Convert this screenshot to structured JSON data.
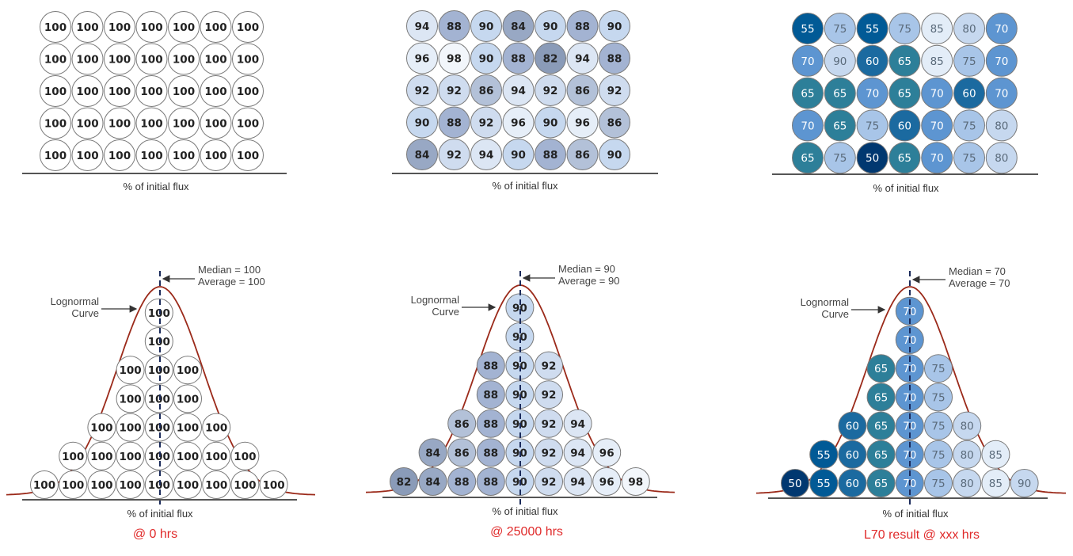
{
  "axis_label": "% of initial flux",
  "median_label_prefix": "Median = ",
  "average_label_prefix": "Average = ",
  "curve_label_line1": "Lognormal",
  "curve_label_line2": "Curve",
  "colors": {
    "100": "#ffffff",
    "98": "#f2f6fb",
    "96": "#e6eef8",
    "94": "#dce6f4",
    "92": "#cfdcef",
    "90": "#c6d8ef",
    "88": "#a3b3d2",
    "86": "#b3c1d8",
    "84": "#98a8c4",
    "82": "#8a9bb8",
    "85": "#e3edf8",
    "80": "#c6d8ef",
    "75": "#a8c5e8",
    "70": "#5d95d1",
    "65": "#2d7f99",
    "60": "#1b6aa0",
    "55": "#015a96",
    "50": "#013870",
    "curve": "#9b2a1a",
    "caption": "#e02a2a"
  },
  "panels": [
    {
      "id": "0hrs",
      "grid": [
        [
          100,
          100,
          100,
          100,
          100,
          100,
          100
        ],
        [
          100,
          100,
          100,
          100,
          100,
          100,
          100
        ],
        [
          100,
          100,
          100,
          100,
          100,
          100,
          100
        ],
        [
          100,
          100,
          100,
          100,
          100,
          100,
          100
        ],
        [
          100,
          100,
          100,
          100,
          100,
          100,
          100
        ]
      ],
      "median": "100",
      "average": "100",
      "caption": "@ 0 hrs",
      "histogram": [
        [
          100,
          100,
          100,
          100,
          100,
          100,
          100,
          100,
          100
        ],
        [
          100,
          100,
          100,
          100,
          100,
          100,
          100
        ],
        [
          100,
          100,
          100,
          100,
          100
        ],
        [
          100,
          100,
          100
        ],
        [
          100,
          100,
          100
        ],
        [
          100
        ],
        [
          100
        ]
      ]
    },
    {
      "id": "25000hrs",
      "grid": [
        [
          94,
          88,
          90,
          84,
          90,
          88,
          90
        ],
        [
          96,
          98,
          90,
          88,
          82,
          94,
          88
        ],
        [
          92,
          92,
          86,
          94,
          92,
          86,
          92
        ],
        [
          90,
          88,
          92,
          96,
          90,
          96,
          86
        ],
        [
          84,
          92,
          94,
          90,
          88,
          86,
          90
        ]
      ],
      "median": "90",
      "average": "90",
      "caption": "@ 25000 hrs",
      "histogram": [
        [
          82,
          84,
          88,
          88,
          90,
          92,
          94,
          96,
          98
        ],
        [
          84,
          86,
          88,
          90,
          92,
          94,
          96
        ],
        [
          86,
          88,
          90,
          92,
          94
        ],
        [
          88,
          90,
          92
        ],
        [
          88,
          90,
          92
        ],
        [
          90
        ],
        [
          90
        ]
      ]
    },
    {
      "id": "l70",
      "grid": [
        [
          55,
          75,
          55,
          75,
          85,
          80,
          70
        ],
        [
          70,
          90,
          60,
          65,
          85,
          75,
          70
        ],
        [
          65,
          65,
          70,
          65,
          70,
          60,
          70
        ],
        [
          70,
          65,
          75,
          60,
          70,
          75,
          80
        ],
        [
          65,
          75,
          50,
          65,
          70,
          75,
          80
        ]
      ],
      "median": "70",
      "average": "70",
      "caption": "L70 result @ xxx hrs",
      "histogram": [
        [
          50,
          55,
          60,
          65,
          70,
          75,
          80,
          85,
          90
        ],
        [
          55,
          60,
          65,
          70,
          75,
          80,
          85
        ],
        [
          60,
          65,
          70,
          75,
          80
        ],
        [
          65,
          70,
          75
        ],
        [
          65,
          70,
          75
        ],
        [
          70
        ],
        [
          70
        ]
      ]
    }
  ]
}
